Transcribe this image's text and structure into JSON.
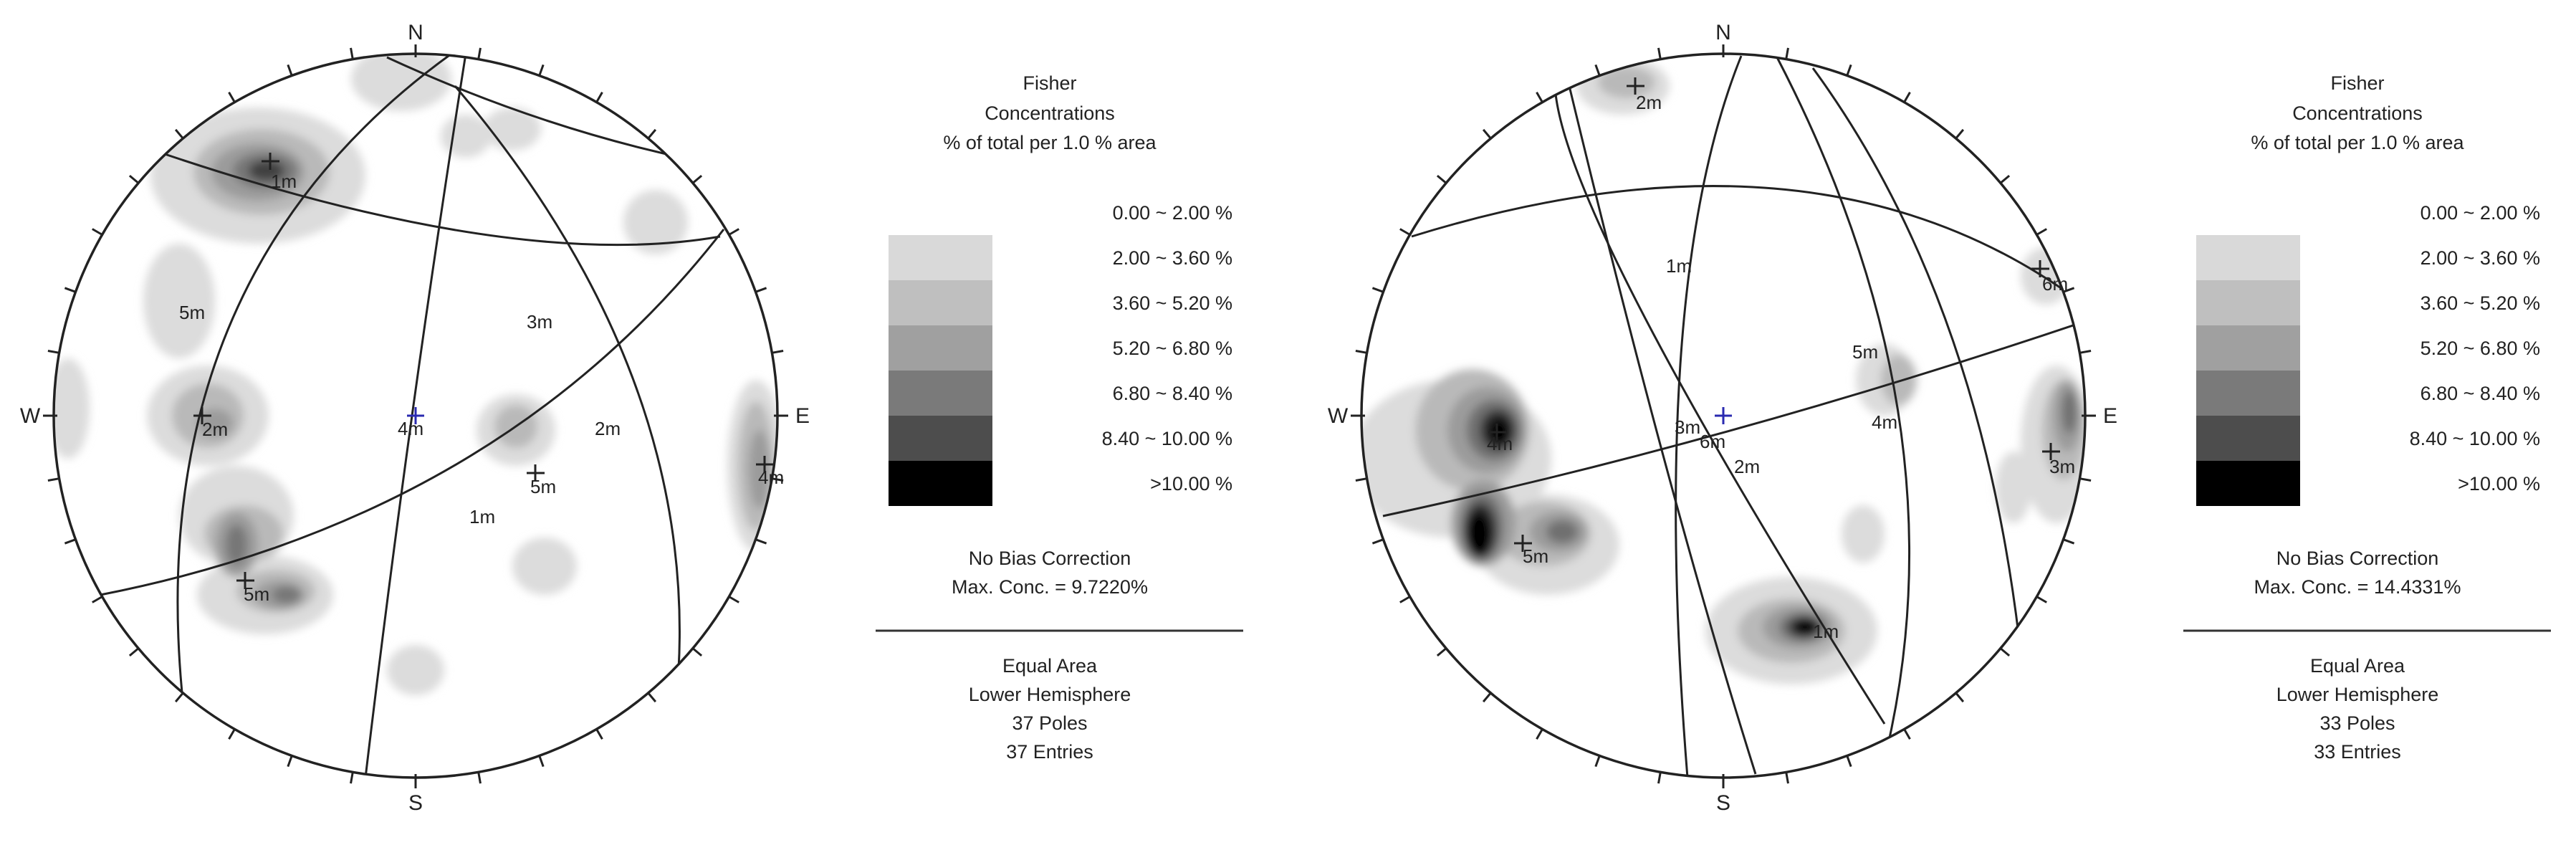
{
  "panels": [
    {
      "compass": {
        "n": "N",
        "s": "S",
        "e": "E",
        "w": "W"
      },
      "legend": {
        "title_lines": [
          "Fisher",
          "Concentrations",
          "% of total per 1.0 % area"
        ],
        "ranges": [
          "0.00 ~ 2.00 %",
          "2.00 ~ 3.60 %",
          "3.60 ~ 5.20 %",
          "5.20 ~ 6.80 %",
          "6.80 ~ 8.40 %",
          "8.40 ~ 10.00 %",
          ">10.00 %"
        ],
        "bias": "No Bias Correction",
        "max_conc": "Max. Conc. = 9.7220%",
        "projection": "Equal Area",
        "hemisphere": "Lower Hemisphere",
        "poles": "37 Poles",
        "entries": "37 Entries"
      },
      "labels": [
        "1m",
        "5m",
        "2m",
        "4m",
        "3m",
        "2m",
        "5m",
        "4m",
        "1m",
        "5m"
      ]
    },
    {
      "compass": {
        "n": "N",
        "s": "S",
        "e": "E",
        "w": "W"
      },
      "legend": {
        "title_lines": [
          "Fisher",
          "Concentrations",
          "% of total per 1.0 % area"
        ],
        "ranges": [
          "0.00 ~ 2.00 %",
          "2.00 ~ 3.60 %",
          "3.60 ~ 5.20 %",
          "5.20 ~ 6.80 %",
          "6.80 ~ 8.40 %",
          "8.40 ~ 10.00 %",
          ">10.00 %"
        ],
        "bias": "No Bias Correction",
        "max_conc": "Max. Conc. = 14.4331%",
        "projection": "Equal Area",
        "hemisphere": "Lower Hemisphere",
        "poles": "33 Poles",
        "entries": "33 Entries"
      },
      "labels": [
        "2m",
        "1m",
        "6m",
        "5m",
        "3m",
        "6m",
        "2m",
        "4m",
        "3m",
        "4m",
        "5m",
        "1m"
      ]
    }
  ],
  "colors": {
    "level_1": "#d9d9d9",
    "level_2": "#bfbfbf",
    "level_3": "#a0a0a0",
    "level_4": "#7a7a7a",
    "level_5": "#4d4d4d",
    "level_6": "#000000",
    "line": "#222222",
    "center_mark": "#2a2ab0"
  }
}
